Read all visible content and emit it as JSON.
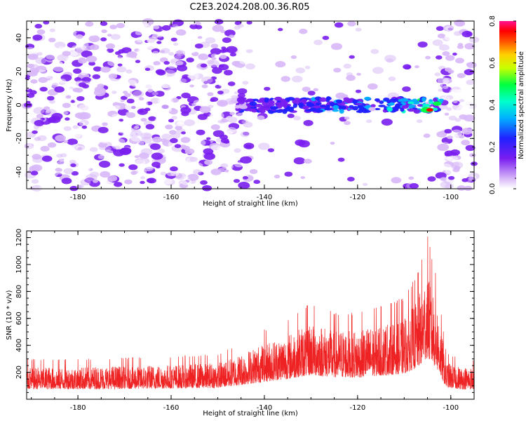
{
  "title": "C2E3.2024.208.00.36.R05",
  "chart_data": [
    {
      "type": "heatmap",
      "xlabel": "Height of straight line (km)",
      "ylabel": "Frequency (Hz)",
      "xlim": [
        -191,
        -95
      ],
      "ylim": [
        -50,
        50
      ],
      "xticks": [
        -180,
        -160,
        -140,
        -120,
        -100
      ],
      "yticks": [
        -40,
        -20,
        0,
        20,
        40
      ],
      "colorbar": {
        "label": "Normalized spectral amplitude",
        "range": [
          0,
          0.8
        ],
        "ticks": [
          0.0,
          0.2,
          0.4,
          0.6,
          0.8
        ],
        "tick_labels": [
          "0.0",
          "0.2",
          "0.4",
          "0.6",
          "0.8"
        ]
      },
      "signal_band": {
        "x_range": [
          -146,
          -102
        ],
        "frequency_center": 0,
        "peak_x": -104.5,
        "peak_frequency": -3,
        "peak_amplitude": 0.78
      },
      "quiet_region": [
        -143,
        -103
      ]
    },
    {
      "type": "line",
      "xlabel": "Height of straight line (km)",
      "ylabel": "SNR (10 * v/v)",
      "xlim": [
        -191,
        -95
      ],
      "ylim": [
        0,
        1250
      ],
      "xticks": [
        -180,
        -160,
        -140,
        -120,
        -100
      ],
      "yticks": [
        200,
        400,
        600,
        800,
        1000,
        1200
      ],
      "series": [
        {
          "color": "#ee2222",
          "envelope_x": [
            -191,
            -180,
            -170,
            -160,
            -150,
            -145,
            -140,
            -135,
            -130,
            -125,
            -120,
            -115,
            -110,
            -107,
            -105,
            -103,
            -101,
            -98,
            -95
          ],
          "envelope_y": [
            300,
            300,
            310,
            320,
            340,
            420,
            520,
            600,
            720,
            650,
            640,
            700,
            760,
            950,
            1230,
            900,
            350,
            300,
            300
          ]
        }
      ]
    }
  ]
}
